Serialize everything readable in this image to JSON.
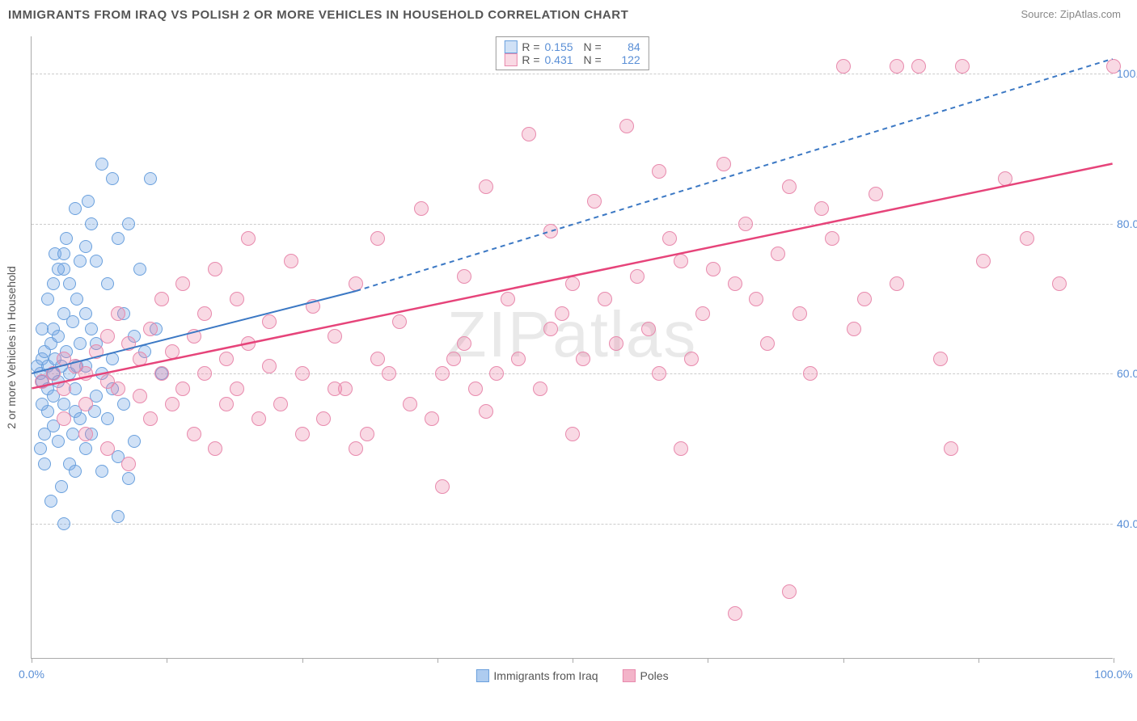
{
  "header": {
    "title": "IMMIGRANTS FROM IRAQ VS POLISH 2 OR MORE VEHICLES IN HOUSEHOLD CORRELATION CHART",
    "source": "Source: ZipAtlas.com"
  },
  "watermark": {
    "bold": "ZIP",
    "thin": "atlas"
  },
  "chart": {
    "type": "scatter",
    "ylabel": "2 or more Vehicles in Household",
    "xlim": [
      0,
      100
    ],
    "ylim": [
      22,
      105
    ],
    "background_color": "#ffffff",
    "grid_color": "#cccccc",
    "axis_color": "#aaaaaa",
    "yticks": [
      40,
      60,
      80,
      100
    ],
    "ytick_labels": [
      "40.0%",
      "60.0%",
      "80.0%",
      "100.0%"
    ],
    "xticks": [
      0,
      12.5,
      25,
      37.5,
      50,
      62.5,
      75,
      87.5,
      100
    ],
    "xtick_labels_shown": {
      "0": "0.0%",
      "100": "100.0%"
    },
    "ytick_color": "#5a8fd6",
    "xtick_color": "#5a8fd6",
    "label_fontsize": 14,
    "title_fontsize": 15,
    "series": [
      {
        "name": "Immigrants from Iraq",
        "color_fill": "rgba(120,170,230,0.35)",
        "color_stroke": "#6aa0dd",
        "marker_radius": 8,
        "R": "0.155",
        "N": "84",
        "regression": {
          "solid": {
            "x1": 0,
            "y1": 60,
            "x2": 30,
            "y2": 71
          },
          "dashed": {
            "x1": 30,
            "y1": 71,
            "x2": 100,
            "y2": 102
          },
          "color": "#3b78c4",
          "width": 2
        },
        "points": [
          [
            0.5,
            61
          ],
          [
            0.8,
            60
          ],
          [
            1,
            62
          ],
          [
            1,
            59
          ],
          [
            1.2,
            63
          ],
          [
            1.5,
            61
          ],
          [
            1.5,
            58
          ],
          [
            1.8,
            64
          ],
          [
            2,
            60
          ],
          [
            2,
            57
          ],
          [
            2,
            66
          ],
          [
            2.2,
            62
          ],
          [
            2.5,
            59
          ],
          [
            2.5,
            65
          ],
          [
            2.8,
            61
          ],
          [
            3,
            68
          ],
          [
            3,
            56
          ],
          [
            3,
            74
          ],
          [
            3.2,
            63
          ],
          [
            3.5,
            60
          ],
          [
            3.5,
            72
          ],
          [
            3.8,
            67
          ],
          [
            4,
            55
          ],
          [
            4,
            82
          ],
          [
            4,
            58
          ],
          [
            4.2,
            70
          ],
          [
            4.5,
            64
          ],
          [
            4.5,
            54
          ],
          [
            5,
            77
          ],
          [
            5,
            50
          ],
          [
            5,
            61
          ],
          [
            5.2,
            83
          ],
          [
            5.5,
            66
          ],
          [
            5.5,
            52
          ],
          [
            6,
            75
          ],
          [
            6,
            57
          ],
          [
            6.5,
            88
          ],
          [
            6.5,
            60
          ],
          [
            7,
            72
          ],
          [
            7,
            54
          ],
          [
            7.5,
            86
          ],
          [
            7.5,
            62
          ],
          [
            8,
            78
          ],
          [
            8,
            49
          ],
          [
            8,
            41
          ],
          [
            8.5,
            68
          ],
          [
            9,
            80
          ],
          [
            9,
            46
          ],
          [
            9.5,
            65
          ],
          [
            10,
            74
          ],
          [
            3,
            40
          ],
          [
            1.5,
            55
          ],
          [
            2,
            53
          ],
          [
            2.5,
            51
          ],
          [
            3.5,
            48
          ],
          [
            4,
            47
          ],
          [
            1,
            56
          ],
          [
            1.2,
            52
          ],
          [
            5,
            68
          ],
          [
            6,
            64
          ],
          [
            2.8,
            45
          ],
          [
            3.2,
            78
          ],
          [
            4.5,
            75
          ],
          [
            5.5,
            80
          ],
          [
            1.8,
            43
          ],
          [
            2.2,
            76
          ],
          [
            6.5,
            47
          ],
          [
            7.5,
            58
          ],
          [
            3.8,
            52
          ],
          [
            4.2,
            61
          ],
          [
            1,
            66
          ],
          [
            1.5,
            70
          ],
          [
            2,
            72
          ],
          [
            2.5,
            74
          ],
          [
            3,
            76
          ],
          [
            0.8,
            50
          ],
          [
            1.2,
            48
          ],
          [
            5.8,
            55
          ],
          [
            8.5,
            56
          ],
          [
            9.5,
            51
          ],
          [
            10.5,
            63
          ],
          [
            11,
            86
          ],
          [
            11.5,
            66
          ],
          [
            12,
            60
          ]
        ]
      },
      {
        "name": "Poles",
        "color_fill": "rgba(235,130,165,0.30)",
        "color_stroke": "#e88aad",
        "marker_radius": 9,
        "R": "0.431",
        "N": "122",
        "regression": {
          "solid": {
            "x1": 0,
            "y1": 58,
            "x2": 100,
            "y2": 88
          },
          "color": "#e6447a",
          "width": 2.5
        },
        "points": [
          [
            1,
            59
          ],
          [
            2,
            60
          ],
          [
            3,
            58
          ],
          [
            3,
            62
          ],
          [
            4,
            61
          ],
          [
            5,
            60
          ],
          [
            5,
            56
          ],
          [
            6,
            63
          ],
          [
            7,
            59
          ],
          [
            7,
            65
          ],
          [
            8,
            58
          ],
          [
            8,
            68
          ],
          [
            9,
            64
          ],
          [
            10,
            62
          ],
          [
            10,
            57
          ],
          [
            11,
            66
          ],
          [
            12,
            60
          ],
          [
            12,
            70
          ],
          [
            13,
            63
          ],
          [
            14,
            58
          ],
          [
            14,
            72
          ],
          [
            15,
            65
          ],
          [
            16,
            60
          ],
          [
            16,
            68
          ],
          [
            17,
            74
          ],
          [
            18,
            62
          ],
          [
            18,
            56
          ],
          [
            19,
            70
          ],
          [
            20,
            64
          ],
          [
            20,
            78
          ],
          [
            22,
            61
          ],
          [
            22,
            67
          ],
          [
            24,
            75
          ],
          [
            25,
            60
          ],
          [
            25,
            52
          ],
          [
            26,
            69
          ],
          [
            28,
            65
          ],
          [
            28,
            58
          ],
          [
            30,
            72
          ],
          [
            30,
            50
          ],
          [
            32,
            78
          ],
          [
            32,
            62
          ],
          [
            34,
            67
          ],
          [
            35,
            56
          ],
          [
            36,
            82
          ],
          [
            38,
            60
          ],
          [
            38,
            45
          ],
          [
            40,
            73
          ],
          [
            40,
            64
          ],
          [
            42,
            85
          ],
          [
            42,
            55
          ],
          [
            44,
            70
          ],
          [
            45,
            62
          ],
          [
            46,
            92
          ],
          [
            47,
            58
          ],
          [
            48,
            79
          ],
          [
            48,
            66
          ],
          [
            50,
            72
          ],
          [
            50,
            52
          ],
          [
            52,
            83
          ],
          [
            54,
            64
          ],
          [
            55,
            93
          ],
          [
            56,
            73
          ],
          [
            58,
            60
          ],
          [
            58,
            87
          ],
          [
            60,
            75
          ],
          [
            60,
            50
          ],
          [
            62,
            68
          ],
          [
            64,
            88
          ],
          [
            65,
            72
          ],
          [
            65,
            28
          ],
          [
            66,
            80
          ],
          [
            68,
            64
          ],
          [
            70,
            31
          ],
          [
            70,
            85
          ],
          [
            72,
            60
          ],
          [
            74,
            78
          ],
          [
            75,
            101
          ],
          [
            76,
            66
          ],
          [
            78,
            84
          ],
          [
            80,
            101
          ],
          [
            80,
            72
          ],
          [
            82,
            101
          ],
          [
            84,
            62
          ],
          [
            85,
            50
          ],
          [
            86,
            101
          ],
          [
            88,
            75
          ],
          [
            90,
            86
          ],
          [
            92,
            78
          ],
          [
            95,
            72
          ],
          [
            100,
            101
          ],
          [
            3,
            54
          ],
          [
            5,
            52
          ],
          [
            7,
            50
          ],
          [
            9,
            48
          ],
          [
            11,
            54
          ],
          [
            13,
            56
          ],
          [
            15,
            52
          ],
          [
            17,
            50
          ],
          [
            19,
            58
          ],
          [
            21,
            54
          ],
          [
            23,
            56
          ],
          [
            27,
            54
          ],
          [
            29,
            58
          ],
          [
            31,
            52
          ],
          [
            33,
            60
          ],
          [
            37,
            54
          ],
          [
            39,
            62
          ],
          [
            41,
            58
          ],
          [
            43,
            60
          ],
          [
            49,
            68
          ],
          [
            51,
            62
          ],
          [
            53,
            70
          ],
          [
            57,
            66
          ],
          [
            59,
            78
          ],
          [
            61,
            62
          ],
          [
            63,
            74
          ],
          [
            67,
            70
          ],
          [
            69,
            76
          ],
          [
            71,
            68
          ],
          [
            73,
            82
          ],
          [
            77,
            70
          ]
        ]
      }
    ],
    "bottom_legend": [
      {
        "label": "Immigrants from Iraq",
        "fill": "rgba(120,170,230,0.6)",
        "stroke": "#6aa0dd"
      },
      {
        "label": "Poles",
        "fill": "rgba(235,130,165,0.6)",
        "stroke": "#e88aad"
      }
    ]
  }
}
